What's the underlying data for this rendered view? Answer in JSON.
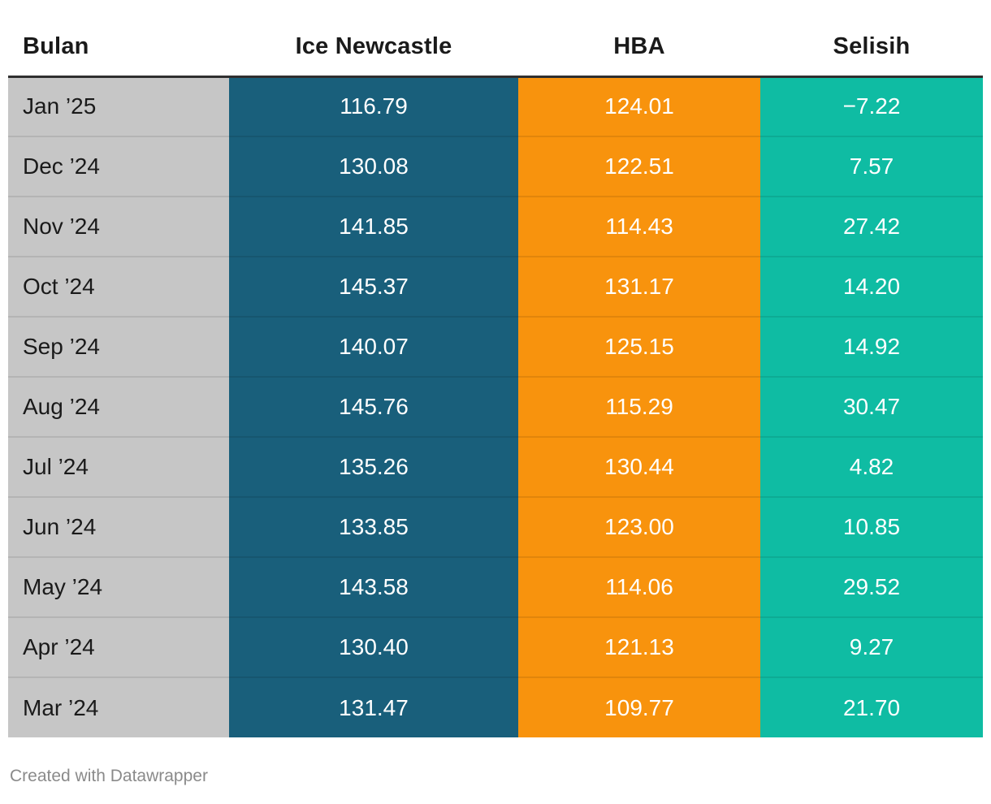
{
  "header": {
    "columns": [
      {
        "label": "Bulan"
      },
      {
        "label": "Ice Newcastle"
      },
      {
        "label": "HBA"
      },
      {
        "label": "Selisih"
      }
    ]
  },
  "rows": [
    {
      "bulan": "Jan ’25",
      "ice": "116.79",
      "hba": "124.01",
      "selisih": "−7.22"
    },
    {
      "bulan": "Dec ’24",
      "ice": "130.08",
      "hba": "122.51",
      "selisih": "7.57"
    },
    {
      "bulan": "Nov ’24",
      "ice": "141.85",
      "hba": "114.43",
      "selisih": "27.42"
    },
    {
      "bulan": "Oct ’24",
      "ice": "145.37",
      "hba": "131.17",
      "selisih": "14.20"
    },
    {
      "bulan": "Sep ’24",
      "ice": "140.07",
      "hba": "125.15",
      "selisih": "14.92"
    },
    {
      "bulan": "Aug ’24",
      "ice": "145.76",
      "hba": "115.29",
      "selisih": "30.47"
    },
    {
      "bulan": "Jul ’24",
      "ice": "135.26",
      "hba": "130.44",
      "selisih": "4.82"
    },
    {
      "bulan": "Jun ’24",
      "ice": "133.85",
      "hba": "123.00",
      "selisih": "10.85"
    },
    {
      "bulan": "May ’24",
      "ice": "143.58",
      "hba": "114.06",
      "selisih": "29.52"
    },
    {
      "bulan": "Apr ’24",
      "ice": "130.40",
      "hba": "121.13",
      "selisih": "9.27"
    },
    {
      "bulan": "Mar ’24",
      "ice": "131.47",
      "hba": "109.77",
      "selisih": "21.70"
    }
  ],
  "footer_credit": "Created with Datawrapper",
  "colors": {
    "col_bulan": "#c6c6c6",
    "col_ice": "#195f7b",
    "col_hba": "#f8930d",
    "col_selisih": "#0fbca3",
    "header_rule": "#2f2f2f",
    "header_text": "#1a1a1a",
    "cell_text_dark": "#1a1a1a",
    "cell_text_light": "#ffffff",
    "credit_text": "#8a8a8a"
  },
  "chart_data": {
    "type": "table",
    "title": "",
    "columns": [
      "Bulan",
      "Ice Newcastle",
      "HBA",
      "Selisih"
    ],
    "categories": [
      "Jan ’25",
      "Dec ’24",
      "Nov ’24",
      "Oct ’24",
      "Sep ’24",
      "Aug ’24",
      "Jul ’24",
      "Jun ’24",
      "May ’24",
      "Apr ’24",
      "Mar ’24"
    ],
    "series": [
      {
        "name": "Ice Newcastle",
        "values": [
          116.79,
          130.08,
          141.85,
          145.37,
          140.07,
          145.76,
          135.26,
          133.85,
          143.58,
          130.4,
          131.47
        ]
      },
      {
        "name": "HBA",
        "values": [
          124.01,
          122.51,
          114.43,
          131.17,
          125.15,
          115.29,
          130.44,
          123.0,
          114.06,
          121.13,
          109.77
        ]
      },
      {
        "name": "Selisih",
        "values": [
          -7.22,
          7.57,
          27.42,
          14.2,
          14.92,
          30.47,
          4.82,
          10.85,
          29.52,
          9.27,
          21.7
        ]
      }
    ],
    "legend_position": "none",
    "grid": false
  }
}
